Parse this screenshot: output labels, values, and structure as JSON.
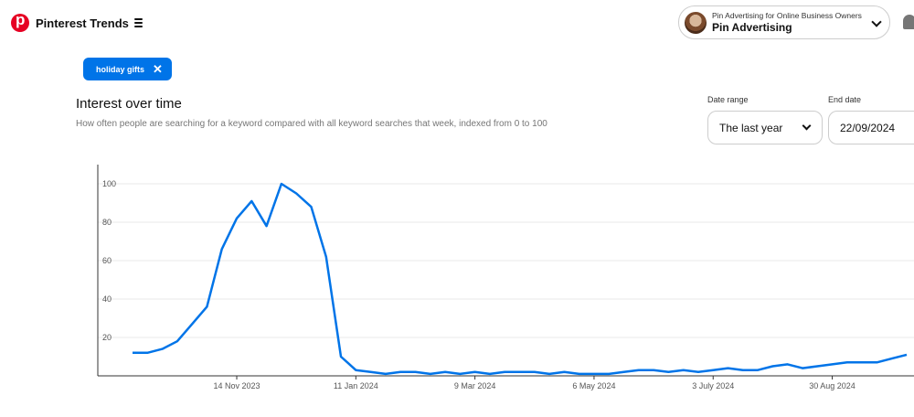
{
  "header": {
    "brand_title": "Pinterest Trends",
    "account_subtitle": "Pin Advertising for Online Business Owners",
    "account_name": "Pin Advertising",
    "account_chevron_icon": "chevron-down-icon",
    "notification_icon": "bell-icon"
  },
  "filter": {
    "chip_label": "holiday gifts",
    "chip_remove_icon": "close-icon"
  },
  "section": {
    "title": "Interest over time",
    "description": "How often people are searching for a keyword compared with all keyword searches that week, indexed from 0 to 100"
  },
  "controls": {
    "date_range_label": "Date range",
    "date_range_value": "The last year",
    "end_date_label": "End date",
    "end_date_value": "22/09/2024"
  },
  "chart_data": {
    "type": "line",
    "title": "",
    "xlabel": "",
    "ylabel": "",
    "ylim": [
      0,
      110
    ],
    "yticks": [
      20,
      40,
      60,
      80,
      100
    ],
    "grid": true,
    "line_color": "#0074e8",
    "x_tick_labels": [
      "14 Nov 2023",
      "11 Jan 2024",
      "9 Mar 2024",
      "6 May 2024",
      "3 July 2024",
      "30 Aug 2024"
    ],
    "x_tick_indices": [
      7,
      15,
      23,
      31,
      39,
      47
    ],
    "series": [
      {
        "values": [
          12,
          12,
          14,
          18,
          27,
          36,
          66,
          82,
          91,
          78,
          100,
          95,
          88,
          62,
          10,
          3,
          2,
          1,
          2,
          2,
          1,
          2,
          1,
          2,
          1,
          2,
          2,
          2,
          1,
          2,
          1,
          1,
          1,
          2,
          3,
          3,
          2,
          3,
          2,
          3,
          4,
          3,
          3,
          5,
          6,
          4,
          5,
          6,
          7,
          7,
          7,
          9,
          11
        ]
      }
    ]
  }
}
